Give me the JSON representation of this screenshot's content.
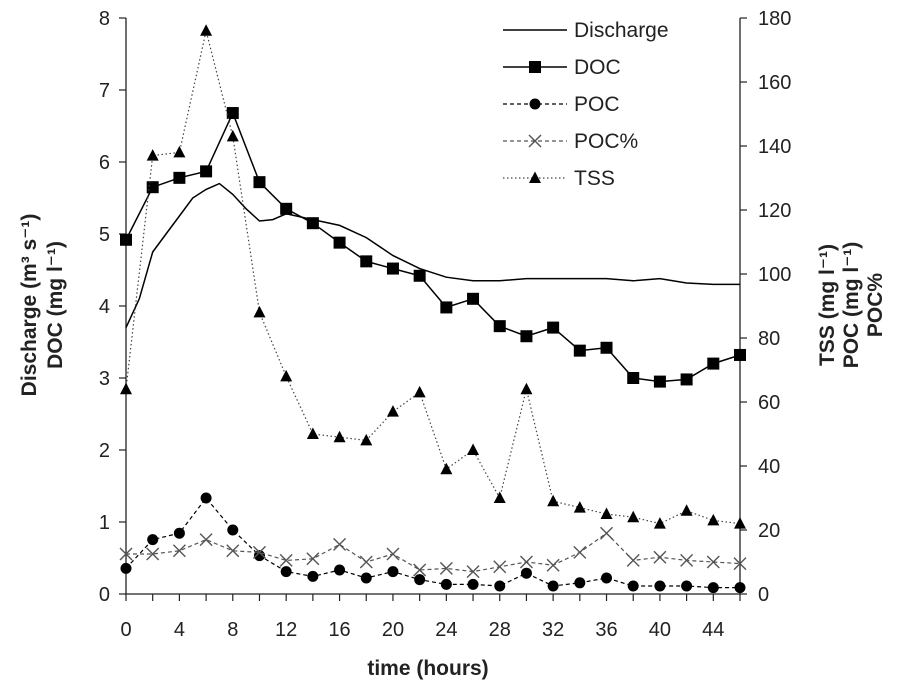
{
  "chart_data": {
    "type": "line",
    "xlabel": "time (hours)",
    "ylabel_left": [
      "Discharge (m³ s⁻¹)",
      "DOC (mg l⁻¹)"
    ],
    "ylabel_right": [
      "TSS (mg l⁻¹)",
      "POC (mg l⁻¹)",
      "POC%"
    ],
    "xlim": [
      0,
      46
    ],
    "ylim_left": [
      0,
      8
    ],
    "ylim_right": [
      0,
      180
    ],
    "x_ticks": [
      "0",
      "4",
      "8",
      "12",
      "16",
      "20",
      "24",
      "28",
      "32",
      "36",
      "40",
      "44"
    ],
    "y_left_ticks": [
      "0",
      "1",
      "2",
      "3",
      "4",
      "5",
      "6",
      "7",
      "8"
    ],
    "y_right_ticks": [
      "0",
      "20",
      "40",
      "60",
      "80",
      "100",
      "120",
      "140",
      "160",
      "180"
    ],
    "legend_position": "top-right",
    "grid": false,
    "series": [
      {
        "name": "Discharge",
        "axis": "left",
        "marker": "none",
        "line": "solid",
        "x": [
          0,
          1,
          2,
          3,
          4,
          5,
          6,
          7,
          8,
          9,
          10,
          11,
          12,
          14,
          16,
          18,
          20,
          22,
          24,
          26,
          28,
          30,
          32,
          34,
          36,
          38,
          40,
          42,
          44,
          46
        ],
        "values": [
          3.7,
          4.1,
          4.75,
          5.0,
          5.25,
          5.5,
          5.62,
          5.7,
          5.55,
          5.35,
          5.18,
          5.2,
          5.28,
          5.2,
          5.12,
          4.95,
          4.7,
          4.52,
          4.4,
          4.35,
          4.35,
          4.38,
          4.38,
          4.38,
          4.38,
          4.35,
          4.38,
          4.32,
          4.3,
          4.3
        ]
      },
      {
        "name": "DOC",
        "axis": "left",
        "marker": "square",
        "line": "solid",
        "x": [
          0,
          2,
          4,
          6,
          8,
          10,
          12,
          14,
          16,
          18,
          20,
          22,
          24,
          26,
          28,
          30,
          32,
          34,
          36,
          38,
          40,
          42,
          44,
          46
        ],
        "values": [
          4.92,
          5.65,
          5.78,
          5.87,
          6.68,
          5.72,
          5.35,
          5.15,
          4.88,
          4.62,
          4.52,
          4.42,
          3.98,
          4.1,
          3.72,
          3.58,
          3.7,
          3.38,
          3.42,
          3.0,
          2.95,
          2.98,
          3.2,
          3.32
        ]
      },
      {
        "name": "POC",
        "axis": "right",
        "marker": "circle",
        "line": "dashed",
        "x": [
          0,
          2,
          4,
          6,
          8,
          10,
          12,
          14,
          16,
          18,
          20,
          22,
          24,
          26,
          28,
          30,
          32,
          34,
          36,
          38,
          40,
          42,
          44,
          46
        ],
        "values": [
          8,
          17,
          19,
          30,
          20,
          12,
          7,
          5.5,
          7.5,
          5,
          7,
          4.5,
          3,
          3,
          2.5,
          6.5,
          2.5,
          3.5,
          5,
          2.5,
          2.5,
          2.5,
          2,
          2
        ]
      },
      {
        "name": "POC%",
        "axis": "right",
        "marker": "x",
        "line": "dashed",
        "x": [
          0,
          2,
          4,
          6,
          8,
          10,
          12,
          14,
          16,
          18,
          20,
          22,
          24,
          26,
          28,
          30,
          32,
          34,
          36,
          38,
          40,
          42,
          44,
          46
        ],
        "values": [
          12.5,
          12.5,
          13.5,
          17,
          13.5,
          13,
          10.5,
          11,
          15.5,
          10,
          12.5,
          7.5,
          8,
          7,
          8.5,
          10,
          9,
          13,
          19,
          10.5,
          11.5,
          10.5,
          10,
          9.5
        ]
      },
      {
        "name": "TSS",
        "axis": "right",
        "marker": "triangle",
        "line": "dotted",
        "x": [
          0,
          2,
          4,
          6,
          8,
          10,
          12,
          14,
          16,
          18,
          20,
          22,
          24,
          26,
          28,
          30,
          32,
          34,
          36,
          38,
          40,
          42,
          44,
          46
        ],
        "values": [
          64,
          137,
          138,
          176,
          143,
          88,
          68,
          50,
          49,
          48,
          57,
          63,
          39,
          45,
          30,
          64,
          29,
          27,
          25,
          24,
          22,
          26,
          23,
          22
        ]
      }
    ]
  }
}
